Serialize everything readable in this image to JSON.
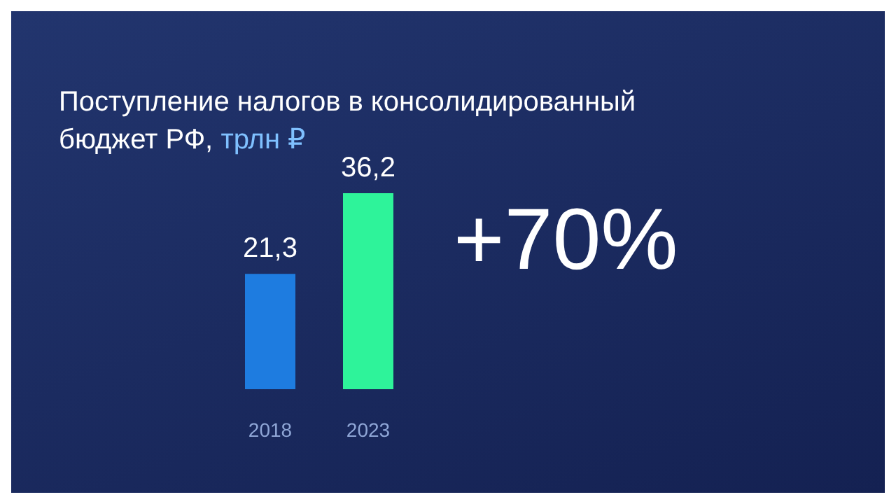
{
  "chart_data": {
    "type": "bar",
    "title": "Поступление налогов в консолидированный бюджет РФ,",
    "subtitle": "трлн ₽",
    "categories": [
      "2018",
      "2023"
    ],
    "values": [
      21.3,
      36.2
    ],
    "colors": [
      "#1e7ce0",
      "#2ef39a"
    ],
    "value_labels": [
      "21,3",
      "36,2"
    ],
    "annotations": [
      "+70%"
    ]
  }
}
